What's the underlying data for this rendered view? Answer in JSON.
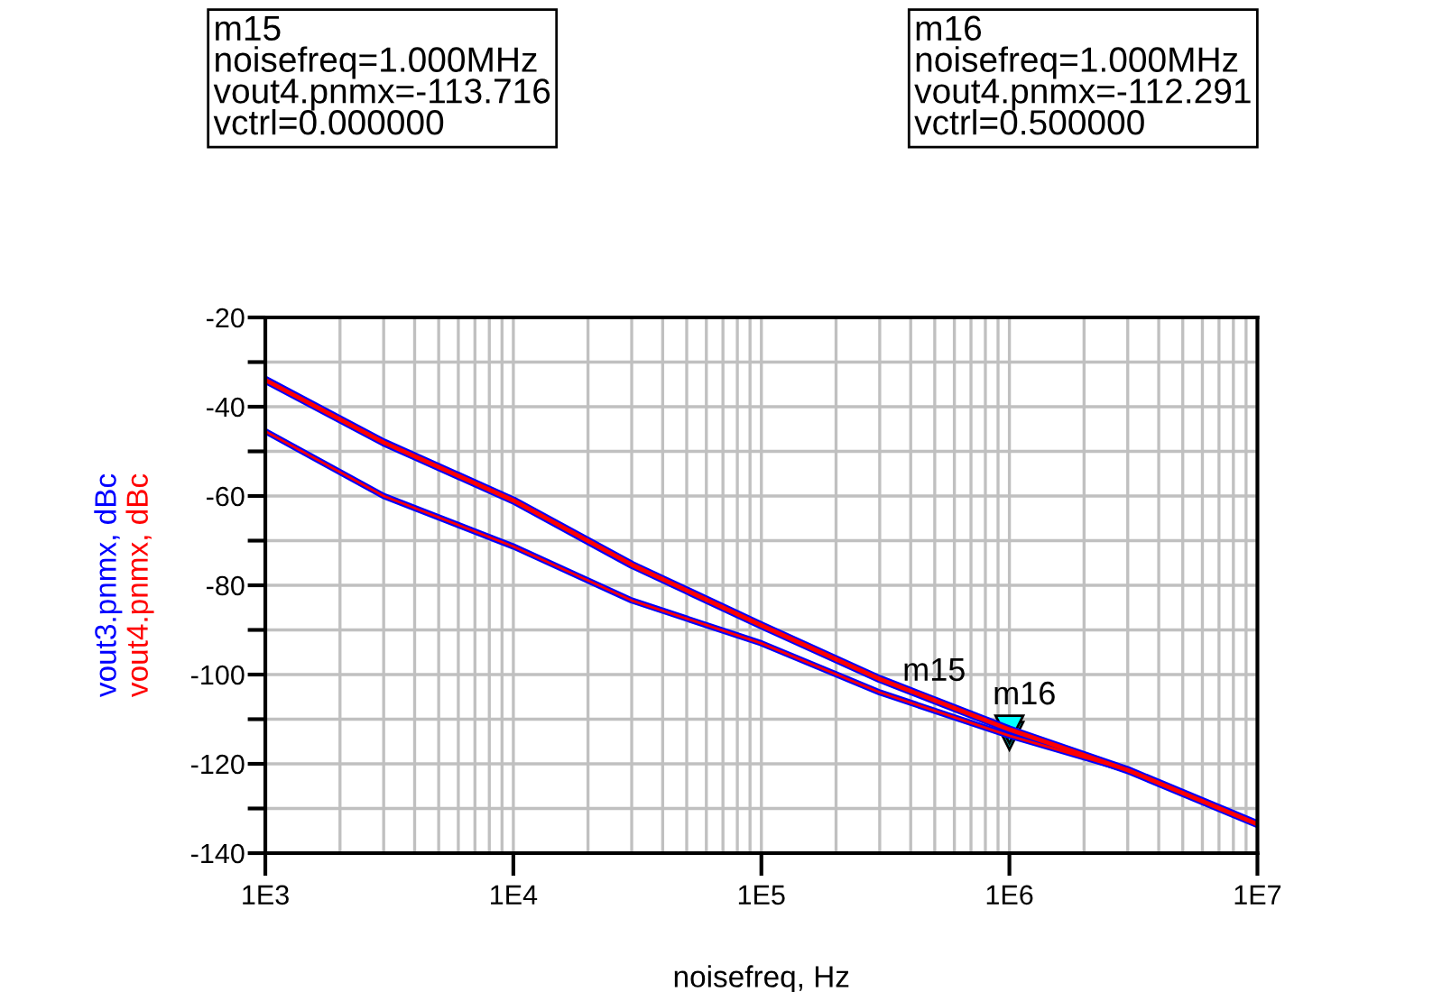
{
  "chart_data": {
    "type": "line",
    "xlabel": "noisefreq, Hz",
    "log": "x",
    "grid": true,
    "legend": false,
    "xlim": [
      1000,
      10000000
    ],
    "xticks": [
      {
        "value": 1000,
        "label": "1E3"
      },
      {
        "value": 10000,
        "label": "1E4"
      },
      {
        "value": 100000,
        "label": "1E5"
      },
      {
        "value": 1000000,
        "label": "1E6"
      },
      {
        "value": 10000000,
        "label": "1E7"
      }
    ],
    "ylim": [
      -140,
      -20
    ],
    "yticks": [
      -140,
      {
        "value": -130,
        "label": null
      },
      -120,
      {
        "value": -110,
        "label": null
      },
      -100,
      {
        "value": -90,
        "label": null
      },
      -80,
      {
        "value": -70,
        "label": null
      },
      -60,
      {
        "value": -50,
        "label": null
      },
      -40,
      {
        "value": -30,
        "label": null
      },
      -20
    ],
    "x": [
      1000,
      3000,
      10000,
      30000,
      100000,
      300000,
      1000000,
      3000000,
      10000000
    ],
    "series": [
      {
        "name": "vout3.pnmx, dBc",
        "color": "#0000ff",
        "values": [
          -34,
          -48,
          -61,
          -75.4,
          -89,
          -101,
          -112.3,
          -121.4,
          -133.5
        ]
      },
      {
        "color": "#0000ff",
        "values": [
          -45.5,
          -60,
          -71.3,
          -83.4,
          -93,
          -104,
          -113.7,
          -121.4,
          -133.5
        ]
      },
      {
        "name": "vout4.pnmx, dBc",
        "color": "#ff0000",
        "values": [
          -34,
          -48,
          -61,
          -75.4,
          -89,
          -101,
          -112.3,
          -121.4,
          -133.5
        ]
      },
      {
        "color": "#ff0000",
        "values": [
          -45.5,
          -60,
          -71.3,
          -83.4,
          -93,
          -104,
          -113.7,
          -121.4,
          -133.5
        ]
      }
    ],
    "annotations": [
      {
        "text": "m15",
        "x": 1000000,
        "y": -113.716
      },
      {
        "text": "m16",
        "x": 1000000,
        "y": -112.291
      },
      "m15\nnoisefreq=1.000MHz\nvout4.pnmx=-113.716\nvctrl=0.000000",
      "m16\nnoisefreq=1.000MHz\nvout4.pnmx=-112.291\nvctrl=0.500000"
    ]
  }
}
